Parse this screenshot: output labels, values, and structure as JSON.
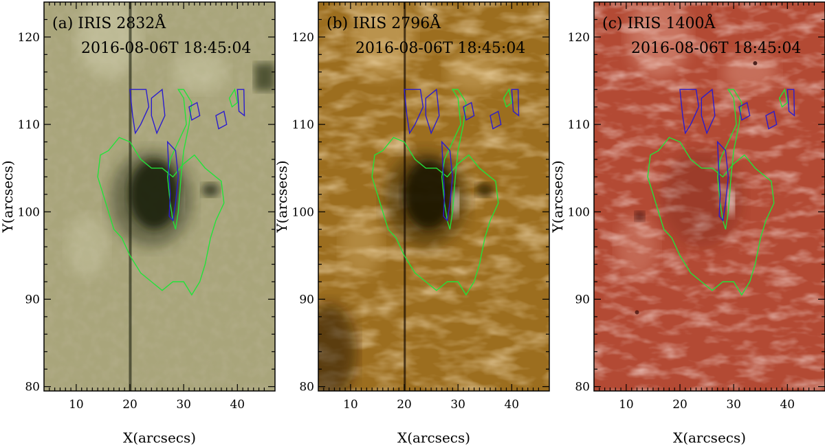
{
  "figure": {
    "panels": [
      {
        "id": "a",
        "tag": "(a)",
        "instrument": "IRIS 2832Å",
        "timestamp": "2016-08-06T 18:45:04",
        "colormap": "olive",
        "xlabel": "X(arcsecs)",
        "ylabel": "Y(arcsecs)"
      },
      {
        "id": "b",
        "tag": "(b)",
        "instrument": "IRIS 2796Å",
        "timestamp": "2016-08-06T 18:45:04",
        "colormap": "amber",
        "xlabel": "X(arcsecs)",
        "ylabel": "Y(arcsecs)"
      },
      {
        "id": "c",
        "tag": "(c)",
        "instrument": "IRIS 1400Å",
        "timestamp": "2016-08-06T 18:45:04",
        "colormap": "red",
        "xlabel": "X(arcsecs)",
        "ylabel": "Y(arcsecs)"
      }
    ],
    "axes": {
      "xlim": [
        4,
        47
      ],
      "ylim": [
        79.5,
        124
      ],
      "xticks": [
        10,
        20,
        30,
        40
      ],
      "yticks": [
        80,
        90,
        100,
        110,
        120
      ]
    },
    "contour_colors": {
      "green": "#22e33a",
      "blue": "#2a1ccf"
    }
  }
}
